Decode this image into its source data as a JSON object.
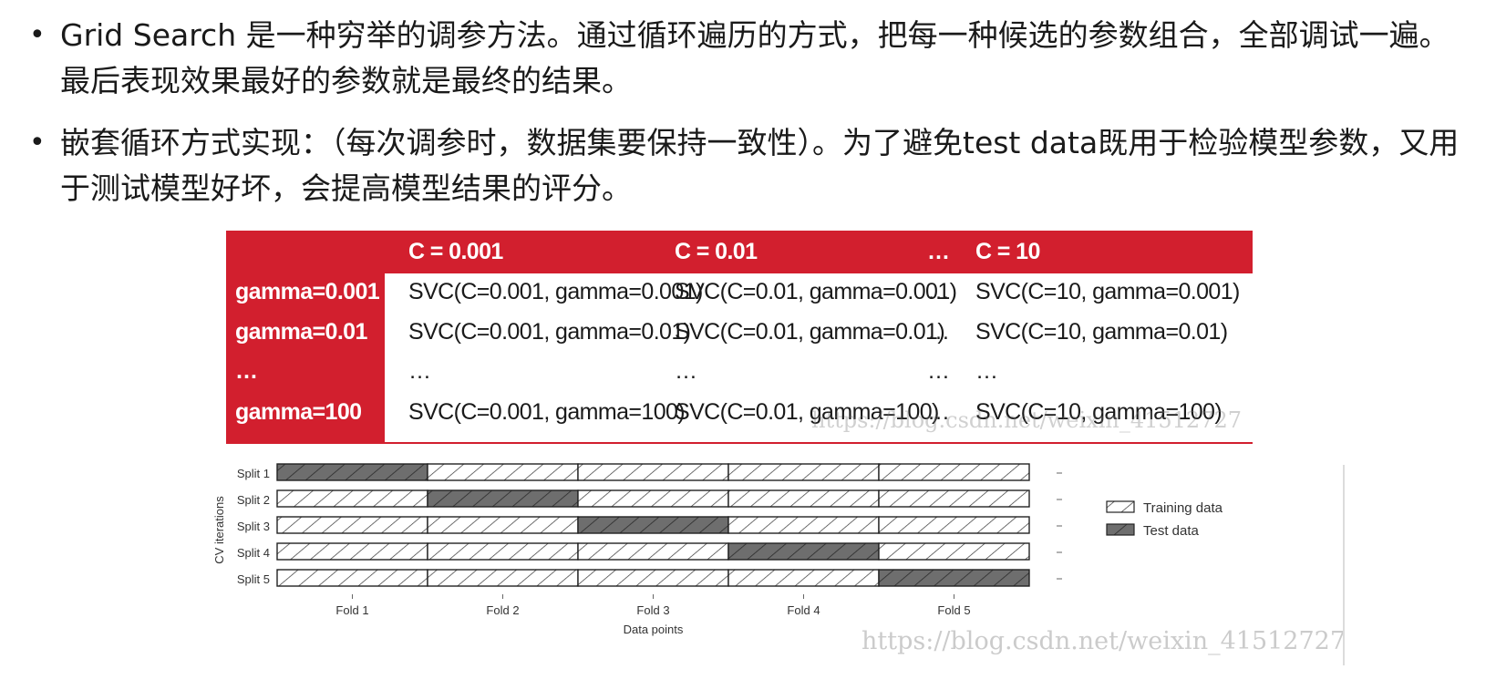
{
  "bullets": [
    "Grid Search 是一种穷举的调参方法。通过循环遍历的方式，把每一种候选的参数组合，全部调试一遍。最后表现效果最好的参数就是最终的结果。",
    "嵌套循环方式实现：（每次调参时，数据集要保持一致性）。为了避免test data既用于检验模型参数，又用于测试模型好坏，会提高模型结果的评分。"
  ],
  "bullet_symbol": "•",
  "grid_table": {
    "headers": [
      "C = 0.001",
      "C = 0.01",
      "…",
      "C = 10"
    ],
    "rows": [
      {
        "label": "gamma=0.001",
        "cells": [
          "SVC(C=0.001, gamma=0.001)",
          "SVC(C=0.01, gamma=0.001)",
          "…",
          "SVC(C=10, gamma=0.001)"
        ]
      },
      {
        "label": "gamma=0.01",
        "cells": [
          "SVC(C=0.001, gamma=0.01)",
          "SVC(C=0.01, gamma=0.01)",
          "…",
          "SVC(C=10, gamma=0.01)"
        ]
      },
      {
        "label": "…",
        "cells": [
          "…",
          "…",
          "…",
          "…"
        ]
      },
      {
        "label": "gamma=100",
        "cells": [
          "SVC(C=0.001, gamma=100)",
          "SVC(C=0.01, gamma=100)",
          "…",
          "SVC(C=10, gamma=100)"
        ]
      }
    ],
    "accent_color": "#d21f2e",
    "watermark": "https://blog.csdn.net/weixin_41512727"
  },
  "chart_data": {
    "type": "table",
    "splits": [
      "Split 1",
      "Split 2",
      "Split 3",
      "Split 4",
      "Split 5"
    ],
    "folds": [
      "Fold 1",
      "Fold 2",
      "Fold 3",
      "Fold 4",
      "Fold 5"
    ],
    "test_fold_index": [
      0,
      1,
      2,
      3,
      4
    ],
    "xlabel": "Data points",
    "ylabel": "CV iterations",
    "legend": [
      {
        "label": "Training data",
        "style": "hatched-light"
      },
      {
        "label": "Test data",
        "style": "hatched-dark"
      }
    ],
    "legend_position": "right",
    "colors": {
      "training": "#ffffff",
      "test": "#6e6e6e",
      "hatch": "#333333"
    },
    "watermark": "https://blog.csdn.net/weixin_41512727"
  }
}
